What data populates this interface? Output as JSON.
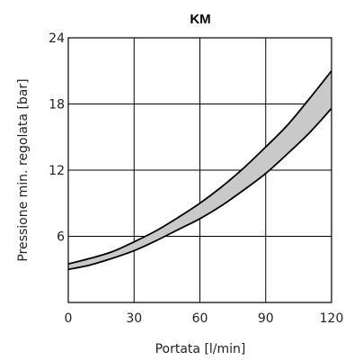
{
  "chart_data": {
    "type": "area",
    "title": "KM",
    "xlabel": "Portata [l/min]",
    "ylabel": "Pressione min. regolata [bar]",
    "xlim": [
      0,
      120
    ],
    "ylim": [
      0,
      24
    ],
    "xticks": [
      0,
      30,
      60,
      90,
      120
    ],
    "yticks": [
      6,
      12,
      18,
      24
    ],
    "grid": true,
    "series": [
      {
        "x": [
          0,
          10,
          20,
          30,
          40,
          50,
          60,
          70,
          80,
          90,
          100,
          110,
          120
        ],
        "values": [
          3.5,
          4.0,
          4.6,
          5.5,
          6.5,
          7.7,
          9.0,
          10.5,
          12.2,
          14.1,
          16.1,
          18.5,
          21.0
        ]
      },
      {
        "x": [
          0,
          10,
          20,
          30,
          40,
          50,
          60,
          70,
          80,
          90,
          100,
          110,
          120
        ],
        "values": [
          3.0,
          3.4,
          4.0,
          4.7,
          5.6,
          6.6,
          7.6,
          8.8,
          10.2,
          11.7,
          13.5,
          15.4,
          17.6
        ]
      }
    ]
  }
}
